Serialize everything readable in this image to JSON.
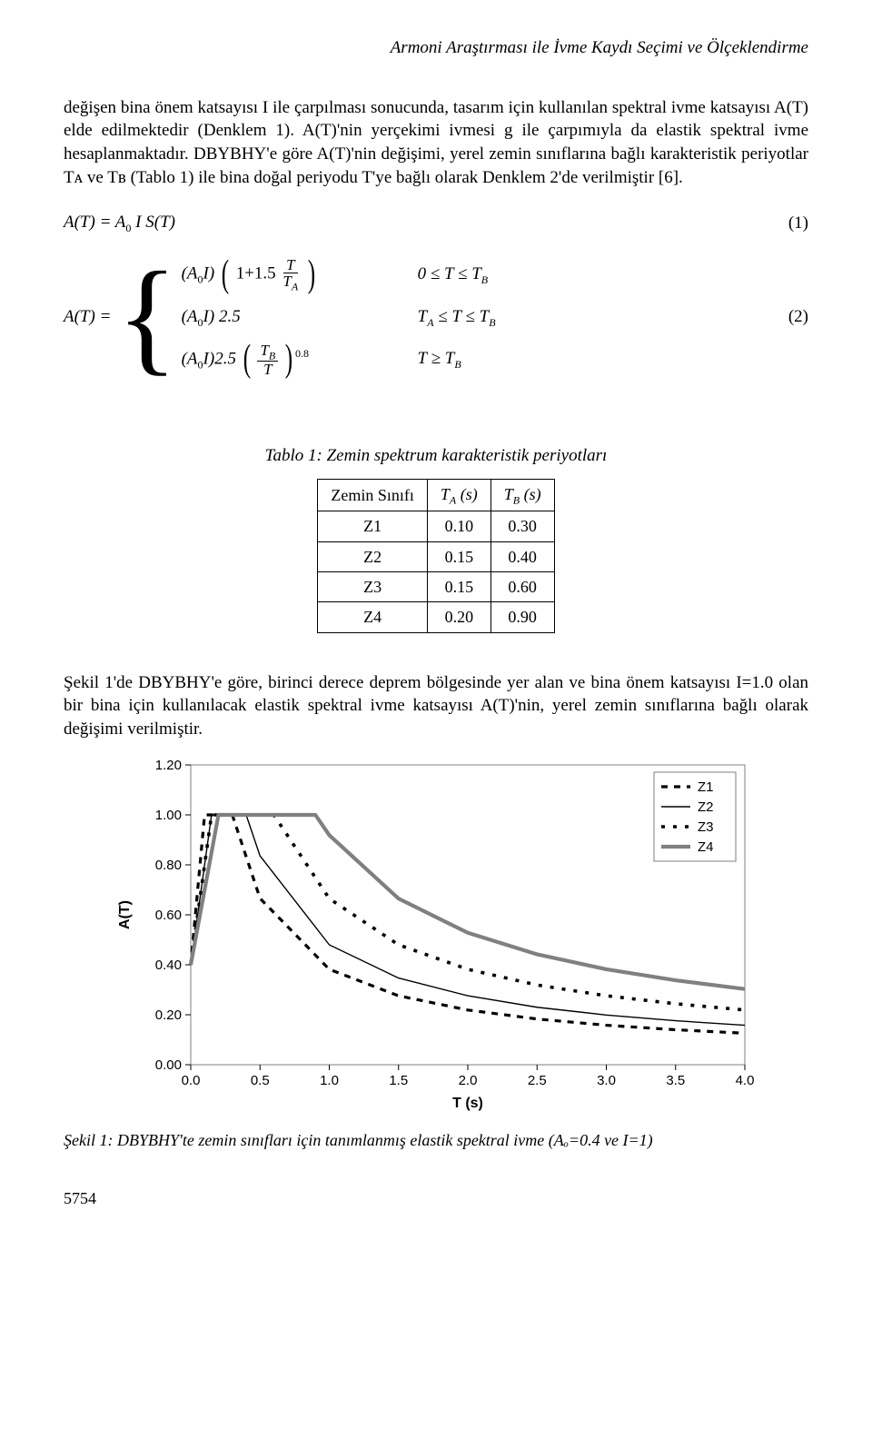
{
  "page_title": "Armoni Araştırması ile İvme Kaydı Seçimi ve Ölçeklendirme",
  "para1": "değişen bina önem katsayısı I ile çarpılması sonucunda, tasarım için kullanılan spektral ivme katsayısı A(T) elde edilmektedir (Denklem 1). A(T)'nin yerçekimi ivmesi g ile çarpımıyla da elastik spektral ivme hesaplanmaktadır. DBYBHY'e göre A(T)'nin değişimi, yerel zemin sınıflarına bağlı karakteristik periyotlar Tᴀ ve Tʙ (Tablo 1) ile bina doğal periyodu T'ye bağlı olarak Denklem 2'de verilmiştir [6].",
  "eq1": {
    "lhs": "A(T) = A",
    "sub0": "0",
    "rhs": " I S(T)",
    "num": "(1)"
  },
  "eq2": {
    "lhs_pre": "A(T) = ",
    "case1_a": "(A",
    "case1_b": "I)",
    "case1_c": "1+1.5",
    "case1_frac_num": "T",
    "case1_frac_den_a": "T",
    "case1_frac_den_b": "A",
    "case1_cond_a": "0 ≤ T ≤ T",
    "case1_cond_b": "B",
    "case2_a": "(A",
    "case2_b": "I) 2.5",
    "case2_cond_a": "T",
    "case2_cond_b": "A",
    "case2_cond_c": " ≤ T ≤ T",
    "case2_cond_d": "B",
    "case3_a": "(A",
    "case3_b": "I)2.5",
    "case3_frac_num_a": "T",
    "case3_frac_num_b": "B",
    "case3_frac_den": "T",
    "case3_exp": "0.8",
    "case3_cond_a": "T ≥ T",
    "case3_cond_b": "B",
    "num": "(2)"
  },
  "table": {
    "caption": "Tablo 1: Zemin spektrum karakteristik periyotları",
    "col1": "Zemin Sınıfı",
    "col2_a": "T",
    "col2_b": "A",
    "col2_c": " (s)",
    "col3_a": "T",
    "col3_b": "B",
    "col3_c": " (s)",
    "rows": [
      [
        "Z1",
        "0.10",
        "0.30"
      ],
      [
        "Z2",
        "0.15",
        "0.40"
      ],
      [
        "Z3",
        "0.15",
        "0.60"
      ],
      [
        "Z4",
        "0.20",
        "0.90"
      ]
    ]
  },
  "para2": "Şekil 1'de DBYBHY'e göre, birinci derece deprem bölgesinde yer alan ve bina önem katsayısı I=1.0 olan bir bina için kullanılacak elastik spektral ivme katsayısı A(T)'nin, yerel zemin sınıflarına bağlı olarak değişimi verilmiştir.",
  "chart": {
    "type": "line",
    "xlabel": "T (s)",
    "ylabel": "A(T)",
    "xlim": [
      0.0,
      4.0
    ],
    "xtick_step": 0.5,
    "ylim": [
      0.0,
      1.2
    ],
    "ytick_step": 0.2,
    "x_ticks": [
      "0.0",
      "0.5",
      "1.0",
      "1.5",
      "2.0",
      "2.5",
      "3.0",
      "3.5",
      "4.0"
    ],
    "y_ticks": [
      "0.00",
      "0.20",
      "0.40",
      "0.60",
      "0.80",
      "1.00",
      "1.20"
    ],
    "plot_bg": "#ffffff",
    "outer_bg": "#ffffff",
    "grid_color": "none",
    "tick_font_size": 15,
    "label_font_size": 16,
    "label_font_weight": "bold",
    "legend_font_size": 15,
    "legend_pos": "top-right",
    "border_color": "#7f7f7f",
    "series": [
      {
        "name": "Z1",
        "color": "#000000",
        "width": 3.2,
        "dash": "7 7",
        "points": [
          [
            0,
            0.4
          ],
          [
            0.1,
            1.0
          ],
          [
            0.3,
            1.0
          ],
          [
            0.5,
            0.666
          ],
          [
            1.0,
            0.382
          ],
          [
            1.5,
            0.276
          ],
          [
            2.0,
            0.219
          ],
          [
            2.5,
            0.183
          ],
          [
            3.0,
            0.158
          ],
          [
            3.5,
            0.14
          ],
          [
            4.0,
            0.126
          ]
        ]
      },
      {
        "name": "Z2",
        "color": "#000000",
        "width": 1.4,
        "dash": "none",
        "points": [
          [
            0,
            0.4
          ],
          [
            0.15,
            1.0
          ],
          [
            0.4,
            1.0
          ],
          [
            0.5,
            0.836
          ],
          [
            1.0,
            0.48
          ],
          [
            1.5,
            0.347
          ],
          [
            2.0,
            0.276
          ],
          [
            2.5,
            0.23
          ],
          [
            3.0,
            0.199
          ],
          [
            3.5,
            0.176
          ],
          [
            4.0,
            0.158
          ]
        ]
      },
      {
        "name": "Z3",
        "color": "#000000",
        "width": 3.6,
        "dash": "4 9",
        "points": [
          [
            0,
            0.4
          ],
          [
            0.15,
            1.0
          ],
          [
            0.6,
            1.0
          ],
          [
            1.0,
            0.665
          ],
          [
            1.5,
            0.48
          ],
          [
            2.0,
            0.382
          ],
          [
            2.5,
            0.319
          ],
          [
            3.0,
            0.276
          ],
          [
            3.5,
            0.244
          ],
          [
            4.0,
            0.219
          ]
        ]
      },
      {
        "name": "Z4",
        "color": "#808080",
        "width": 4.2,
        "dash": "none",
        "points": [
          [
            0,
            0.4
          ],
          [
            0.2,
            1.0
          ],
          [
            0.9,
            1.0
          ],
          [
            1.0,
            0.919
          ],
          [
            1.5,
            0.665
          ],
          [
            2.0,
            0.528
          ],
          [
            2.5,
            0.442
          ],
          [
            3.0,
            0.382
          ],
          [
            3.5,
            0.338
          ],
          [
            4.0,
            0.303
          ]
        ]
      }
    ]
  },
  "fig_caption": "Şekil 1: DBYBHY'te zemin sınıfları için tanımlanmış elastik spektral ivme (Aₒ=0.4 ve I=1)",
  "page_number": "5754"
}
